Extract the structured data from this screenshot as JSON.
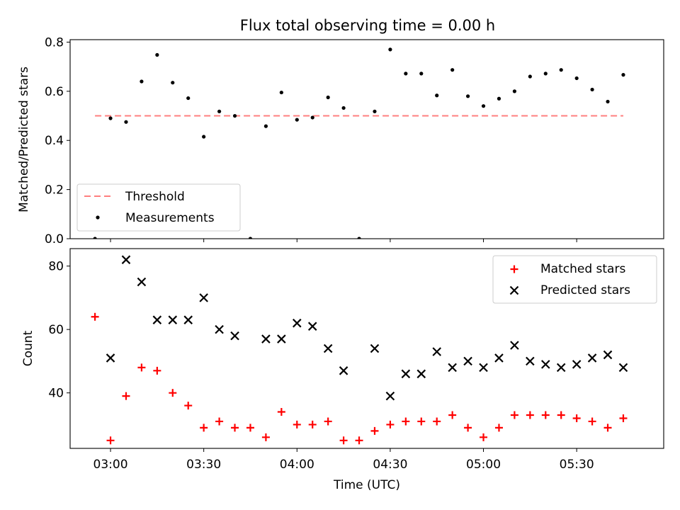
{
  "chart_data": {
    "title": "Flux total observing time = 0.00 h",
    "shared_x": {
      "label": "Time (UTC)",
      "tick_labels": [
        "03:00",
        "03:30",
        "04:00",
        "04:30",
        "05:00",
        "05:30"
      ],
      "ticks": [
        "03:00",
        "03:30",
        "04:00",
        "04:30",
        "05:00",
        "05:30"
      ],
      "range": [
        "02:47",
        "05:58"
      ]
    },
    "panels": [
      {
        "type": "scatter",
        "ylabel": "Matched/Predicted stars",
        "ylim": [
          0,
          0.81
        ],
        "yticks": [
          0.0,
          0.2,
          0.4,
          0.6,
          0.8
        ],
        "ytick_labels": [
          "0.0",
          "0.2",
          "0.4",
          "0.6",
          "0.8"
        ],
        "legend": {
          "position": "lower-left"
        },
        "series": [
          {
            "name": "Threshold",
            "kind": "line",
            "style": "dashed",
            "color": "#ff7f7f",
            "x": [
              "02:55",
              "05:45"
            ],
            "y": [
              0.5,
              0.5
            ]
          },
          {
            "name": "Measurements",
            "kind": "dots",
            "color": "#000000",
            "x": [
              "02:55",
              "03:00",
              "03:05",
              "03:10",
              "03:15",
              "03:20",
              "03:25",
              "03:30",
              "03:35",
              "03:40",
              "03:45",
              "03:50",
              "03:55",
              "04:00",
              "04:05",
              "04:10",
              "04:15",
              "04:20",
              "04:25",
              "04:30",
              "04:35",
              "04:40",
              "04:45",
              "04:50",
              "04:55",
              "05:00",
              "05:05",
              "05:10",
              "05:15",
              "05:20",
              "05:25",
              "05:30",
              "05:35",
              "05:40",
              "05:45"
            ],
            "y": [
              0.0,
              0.49,
              0.475,
              0.64,
              0.748,
              0.635,
              0.572,
              0.415,
              0.518,
              0.5,
              0.0,
              0.458,
              0.595,
              0.484,
              0.493,
              0.575,
              0.532,
              0.0,
              0.518,
              0.77,
              0.672,
              0.672,
              0.583,
              0.687,
              0.58,
              0.54,
              0.57,
              0.6,
              0.66,
              0.672,
              0.687,
              0.653,
              0.607,
              0.558,
              0.667
            ]
          }
        ]
      },
      {
        "type": "scatter",
        "ylabel": "Count",
        "ylim": [
          22.5,
          85.5
        ],
        "yticks": [
          40,
          60,
          80
        ],
        "ytick_labels": [
          "40",
          "60",
          "80"
        ],
        "legend": {
          "position": "top-right"
        },
        "series": [
          {
            "name": "Matched stars",
            "marker": "plus",
            "color": "#ff0000",
            "x": [
              "02:55",
              "03:00",
              "03:05",
              "03:10",
              "03:15",
              "03:20",
              "03:25",
              "03:30",
              "03:35",
              "03:40",
              "03:45",
              "03:50",
              "03:55",
              "04:00",
              "04:05",
              "04:10",
              "04:15",
              "04:20",
              "04:25",
              "04:30",
              "04:35",
              "04:40",
              "04:45",
              "04:50",
              "04:55",
              "05:00",
              "05:05",
              "05:10",
              "05:15",
              "05:20",
              "05:25",
              "05:30",
              "05:35",
              "05:40",
              "05:45"
            ],
            "y": [
              64,
              25,
              39,
              48,
              47,
              40,
              36,
              29,
              31,
              29,
              29,
              26,
              34,
              30,
              30,
              31,
              25,
              25,
              28,
              30,
              31,
              31,
              31,
              33,
              29,
              26,
              29,
              33,
              33,
              33,
              33,
              32,
              31,
              29,
              32
            ]
          },
          {
            "name": "Predicted stars",
            "marker": "x",
            "color": "#000000",
            "x": [
              "03:00",
              "03:05",
              "03:10",
              "03:15",
              "03:20",
              "03:25",
              "03:30",
              "03:35",
              "03:40",
              "03:50",
              "03:55",
              "04:00",
              "04:05",
              "04:10",
              "04:15",
              "04:25",
              "04:30",
              "04:35",
              "04:40",
              "04:45",
              "04:50",
              "04:55",
              "05:00",
              "05:05",
              "05:10",
              "05:15",
              "05:20",
              "05:25",
              "05:30",
              "05:35",
              "05:40",
              "05:45"
            ],
            "y": [
              51,
              82,
              75,
              63,
              63,
              63,
              70,
              60,
              58,
              57,
              57,
              62,
              61,
              54,
              47,
              54,
              39,
              46,
              46,
              53,
              48,
              50,
              48,
              51,
              55,
              50,
              49,
              48,
              49,
              51,
              52,
              48
            ]
          }
        ]
      }
    ]
  }
}
